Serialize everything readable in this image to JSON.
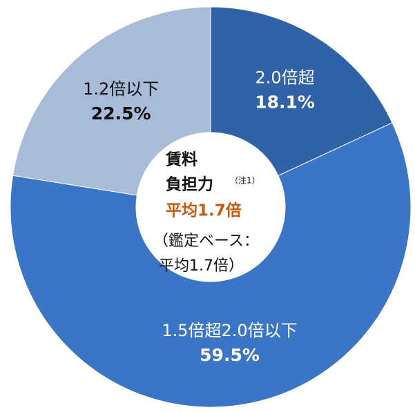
{
  "chart_data": {
    "type": "donut",
    "categories": [
      "2.0倍超",
      "1.5倍超2.0倍以下",
      "1.2倍以下"
    ],
    "values": [
      18.1,
      59.5,
      22.5
    ],
    "value_labels": [
      "18.1%",
      "59.5%",
      "22.5%"
    ],
    "colors": [
      "#2f62a6",
      "#3b76c6",
      "#a8bbd8"
    ],
    "center_text": {
      "line1": "賃料",
      "line2": "負担力",
      "note": "（注1）",
      "average": "平均1.7倍",
      "line4": "（鑑定ベース：",
      "line5": "平均1.7倍）"
    }
  }
}
